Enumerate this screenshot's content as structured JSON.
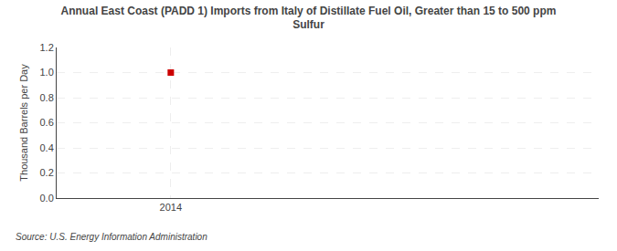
{
  "chart_data": {
    "type": "scatter",
    "title": "Annual East Coast (PADD 1) Imports from Italy of Distillate Fuel Oil, Greater than 15 to 500 ppm\nSulfur",
    "ylabel": "Thousand Barrels per Day",
    "source": "Source: U.S. Energy Information Administration",
    "x": [
      2014
    ],
    "values": [
      1.0
    ],
    "color": "#cc0000",
    "marker": "square",
    "xlim": [
      2013.6,
      2015.5
    ],
    "xticks": [
      2014
    ],
    "ylim": [
      0.0,
      1.2
    ],
    "yticks": [
      {
        "value": 0.0,
        "label": "0.0"
      },
      {
        "value": 0.2,
        "label": "0.2"
      },
      {
        "value": 0.4,
        "label": "0.4"
      },
      {
        "value": 0.6,
        "label": "0.6"
      },
      {
        "value": 0.8,
        "label": "0.8"
      },
      {
        "value": 1.0,
        "label": "1.0"
      },
      {
        "value": 1.2,
        "label": "1.2"
      }
    ],
    "grid": true
  }
}
